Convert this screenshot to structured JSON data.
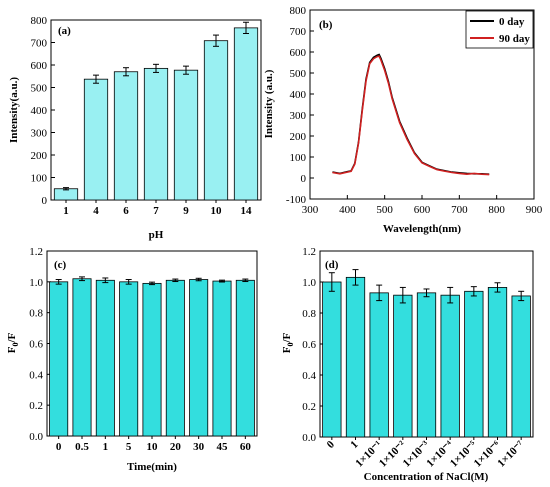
{
  "chart_data": [
    {
      "type": "bar",
      "panel_label": "(a)",
      "xlabel": "pH",
      "ylabel": "Intensity(a.u.)",
      "categories": [
        "1",
        "4",
        "6",
        "7",
        "9",
        "10",
        "14"
      ],
      "values": [
        50,
        537,
        570,
        585,
        577,
        708,
        765
      ],
      "errors": [
        5,
        18,
        18,
        18,
        18,
        25,
        25
      ],
      "ylim": [
        0,
        800
      ],
      "yticks": [
        "0",
        "100",
        "200",
        "300",
        "400",
        "500",
        "600",
        "700",
        "800"
      ],
      "bar_color": "#99f0f2"
    },
    {
      "type": "line",
      "panel_label": "(b)",
      "xlabel": "Wavelength(nm)",
      "ylabel": "Intensity (a.u.)",
      "xlim": [
        300,
        900
      ],
      "ylim": [
        -100,
        800
      ],
      "xticks": [
        "300",
        "400",
        "500",
        "600",
        "700",
        "800",
        "900"
      ],
      "yticks": [
        "-100",
        "0",
        "100",
        "200",
        "300",
        "400",
        "500",
        "600",
        "700",
        "800"
      ],
      "legend_position": "top-right",
      "series": [
        {
          "name": "0 day",
          "color": "#000000",
          "x": [
            360,
            380,
            400,
            410,
            420,
            430,
            440,
            450,
            460,
            470,
            480,
            485,
            490,
            500,
            510,
            520,
            540,
            560,
            580,
            600,
            620,
            640,
            660,
            680,
            700,
            720,
            740,
            760,
            780
          ],
          "y": [
            28,
            22,
            30,
            34,
            70,
            170,
            330,
            470,
            550,
            575,
            585,
            588,
            570,
            520,
            460,
            385,
            270,
            190,
            120,
            75,
            58,
            42,
            35,
            28,
            25,
            22,
            20,
            20,
            18
          ]
        },
        {
          "name": "90 day",
          "color": "#d02020",
          "x": [
            360,
            380,
            400,
            410,
            420,
            430,
            440,
            450,
            460,
            470,
            480,
            485,
            490,
            500,
            510,
            520,
            540,
            560,
            580,
            600,
            620,
            640,
            660,
            680,
            700,
            720,
            740,
            760,
            780
          ],
          "y": [
            26,
            20,
            28,
            32,
            66,
            165,
            322,
            462,
            545,
            568,
            578,
            580,
            562,
            512,
            452,
            378,
            264,
            184,
            116,
            72,
            55,
            40,
            33,
            26,
            22,
            18,
            22,
            18,
            16
          ]
        }
      ]
    },
    {
      "type": "bar",
      "panel_label": "(c)",
      "xlabel": "Time(min)",
      "ylabel": "F0/F",
      "categories": [
        "0",
        "0.5",
        "1",
        "5",
        "10",
        "20",
        "30",
        "45",
        "60"
      ],
      "values": [
        1.0,
        1.02,
        1.01,
        1.0,
        0.99,
        1.01,
        1.015,
        1.005,
        1.01
      ],
      "errors": [
        0.015,
        0.012,
        0.015,
        0.015,
        0.008,
        0.008,
        0.008,
        0.006,
        0.008
      ],
      "ylim": [
        0,
        1.2
      ],
      "yticks": [
        "0.0",
        "0.2",
        "0.4",
        "0.6",
        "0.8",
        "1.0",
        "1.2"
      ],
      "bar_color": "#33dede"
    },
    {
      "type": "bar",
      "panel_label": "(d)",
      "xlabel": "Concentration of NaCl(M)",
      "ylabel": "F0/F",
      "categories": [
        "0",
        "1",
        "1×10⁻¹",
        "1×10⁻²",
        "1×10⁻³",
        "1×10⁻⁴",
        "1×10⁻⁵",
        "1×10⁻⁶",
        "1×10⁻⁷"
      ],
      "values": [
        1.0,
        1.03,
        0.93,
        0.915,
        0.93,
        0.915,
        0.94,
        0.965,
        0.91
      ],
      "errors": [
        0.06,
        0.05,
        0.05,
        0.05,
        0.025,
        0.05,
        0.03,
        0.03,
        0.03
      ],
      "ylim": [
        0,
        1.2
      ],
      "yticks": [
        "0.0",
        "0.2",
        "0.4",
        "0.6",
        "0.8",
        "1.0",
        "1.2"
      ],
      "bar_color": "#33dede"
    }
  ]
}
